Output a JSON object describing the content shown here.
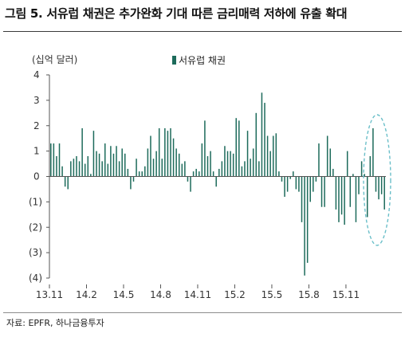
{
  "header": {
    "title": "그림 5. 서유럽 채권은 추가완화 기대 따른  금리매력 저하에 유출 확대",
    "unit": "(십억 달러)",
    "source": "자료: EPFR, 하나금융투자"
  },
  "chart_data": {
    "type": "bar",
    "title": "그림 5. 서유럽 채권은 추가완화 기대 따른  금리매력 저하에 유출 확대",
    "ylabel": "(십억 달러)",
    "xlabel": "",
    "ylim": [
      -4,
      4
    ],
    "yticks": [
      4,
      3,
      2,
      1,
      0,
      -1,
      -2,
      -3,
      -4
    ],
    "ytick_labels": [
      "4",
      "3",
      "2",
      "1",
      "0",
      "(1)",
      "(2)",
      "(3)",
      "(4)"
    ],
    "x_tick_labels": [
      "13.11",
      "14.2",
      "14.5",
      "14.8",
      "14.11",
      "15.2",
      "15.5",
      "15.8",
      "15.11"
    ],
    "x_tick_index": [
      0,
      13,
      26,
      39,
      52,
      65,
      78,
      91,
      104
    ],
    "grid": false,
    "legend_position": "top-center",
    "colors": {
      "bar": "#1d6b5b",
      "highlight": "#6bbfc9"
    },
    "annotation": "dashed ellipse highlighting the latest weeks",
    "series": [
      {
        "name": "서유럽 채권",
        "values": [
          1.3,
          1.3,
          0.8,
          1.3,
          0.4,
          -0.4,
          -0.5,
          0.6,
          0.7,
          0.8,
          0.6,
          1.9,
          0.5,
          0.8,
          0.1,
          1.8,
          1.0,
          0.9,
          0.6,
          1.3,
          0.5,
          1.2,
          0.9,
          1.2,
          0.6,
          1.1,
          0.9,
          0.3,
          -0.5,
          -0.2,
          0.7,
          0.2,
          0.2,
          0.4,
          1.1,
          1.6,
          0.7,
          1.0,
          1.9,
          0.7,
          1.9,
          1.8,
          1.9,
          1.5,
          1.1,
          0.9,
          0.5,
          0.6,
          -0.2,
          -0.6,
          0.2,
          0.3,
          0.2,
          1.3,
          2.2,
          0.8,
          1.0,
          0.2,
          -0.4,
          0.3,
          0.6,
          1.2,
          1.0,
          1.0,
          0.9,
          2.3,
          2.2,
          0.4,
          0.6,
          1.8,
          0.7,
          1.1,
          2.5,
          0.6,
          3.3,
          2.9,
          1.6,
          1.0,
          1.6,
          1.7,
          0.2,
          -0.2,
          -0.8,
          -0.6,
          -0.1,
          0.2,
          -0.5,
          -0.6,
          -1.8,
          -3.9,
          -3.4,
          -1.0,
          -0.6,
          -0.2,
          1.3,
          -1.2,
          -1.2,
          1.6,
          1.1,
          0.3,
          -1.3,
          -1.8,
          -1.5,
          -1.9,
          1.0,
          -1.2,
          0.1,
          -1.8,
          -0.7,
          0.6,
          0.1,
          -1.6,
          0.8,
          1.9,
          -0.6,
          -0.9,
          -0.7,
          -1.3
        ]
      }
    ]
  }
}
